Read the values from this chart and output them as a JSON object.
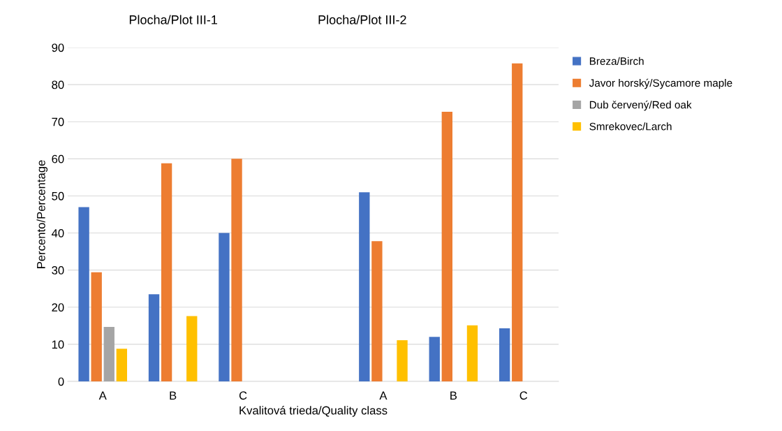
{
  "chart_data": {
    "type": "bar",
    "xlabel": "Kvalitová trieda/Quality class",
    "ylabel": "Percento/Percentage",
    "annotations": [
      "Plocha/Plot III-1",
      "Plocha/Plot III-2"
    ],
    "categories": [
      "A",
      "B",
      "C",
      null,
      "A",
      "B",
      "C"
    ],
    "series": [
      {
        "name": "Breza/Birch",
        "color": "#4472c4",
        "values": [
          47,
          23.5,
          40,
          null,
          51,
          12,
          14.3
        ]
      },
      {
        "name": "Javor horský/Sycamore maple",
        "color": "#ed7d31",
        "values": [
          29.4,
          58.8,
          60,
          null,
          37.8,
          72.7,
          85.7
        ]
      },
      {
        "name": "Dub červený/Red oak",
        "color": "#a5a5a5",
        "values": [
          14.7,
          null,
          null,
          null,
          null,
          null,
          null
        ]
      },
      {
        "name": "Smrekovec/Larch",
        "color": "#ffc000",
        "values": [
          8.8,
          17.6,
          null,
          null,
          11.1,
          15.1,
          null
        ]
      }
    ],
    "ylim": [
      0,
      90
    ],
    "yticks": [
      0,
      10,
      20,
      30,
      40,
      50,
      60,
      70,
      80,
      90
    ],
    "grid": "y",
    "legend": "top right"
  }
}
